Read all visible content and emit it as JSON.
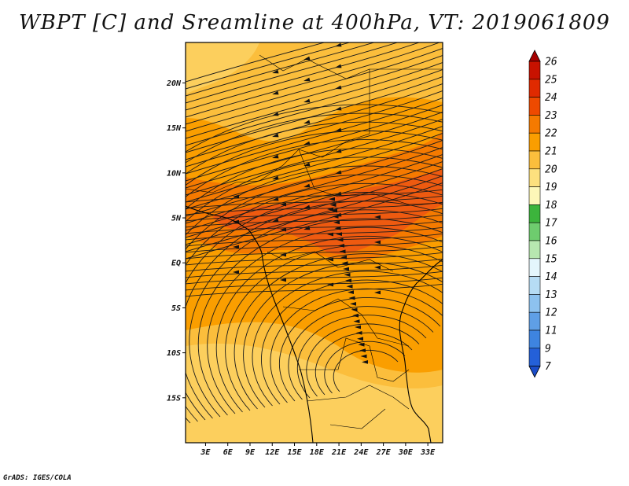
{
  "title": "WBPT [C] and Sreamline at 400hPa, VT: 2019061809",
  "credit": "GrADS: IGES/COLA",
  "map": {
    "lat_labels": [
      "20N",
      "15N",
      "10N",
      "5N",
      "EQ",
      "5S",
      "10S",
      "15S"
    ],
    "lat_values": [
      20,
      15,
      10,
      5,
      0,
      -5,
      -10,
      -15
    ],
    "lon_labels": [
      "3E",
      "6E",
      "9E",
      "12E",
      "15E",
      "18E",
      "21E",
      "24E",
      "27E",
      "30E",
      "33E"
    ],
    "lon_values": [
      3,
      6,
      9,
      12,
      15,
      18,
      21,
      24,
      27,
      30,
      33
    ],
    "lat_range": [
      -20,
      24.5
    ],
    "lon_range": [
      0.3,
      35
    ]
  },
  "colorbar": {
    "labels": [
      "26",
      "25",
      "24",
      "23",
      "22",
      "21",
      "20",
      "19",
      "18",
      "17",
      "16",
      "15",
      "14",
      "13",
      "12",
      "11",
      "9",
      "7"
    ],
    "colors": [
      "#a50000",
      "#c81200",
      "#e02a00",
      "#ee4a00",
      "#f57a00",
      "#fa9e00",
      "#fbbe3c",
      "#fde07e",
      "#fdf7b8",
      "#3cb43c",
      "#6ecc6e",
      "#b7e7b0",
      "#e4f6fc",
      "#b6dcf4",
      "#8dc2ef",
      "#5f9fe6",
      "#3e84e0",
      "#2460d8",
      "#1a4cc8"
    ]
  },
  "field_colors": {
    "c20": "#fbbe3c",
    "c21": "#fa9e00",
    "c22": "#f57a00",
    "c23": "#ee5a10",
    "c19": "#fde07e"
  }
}
